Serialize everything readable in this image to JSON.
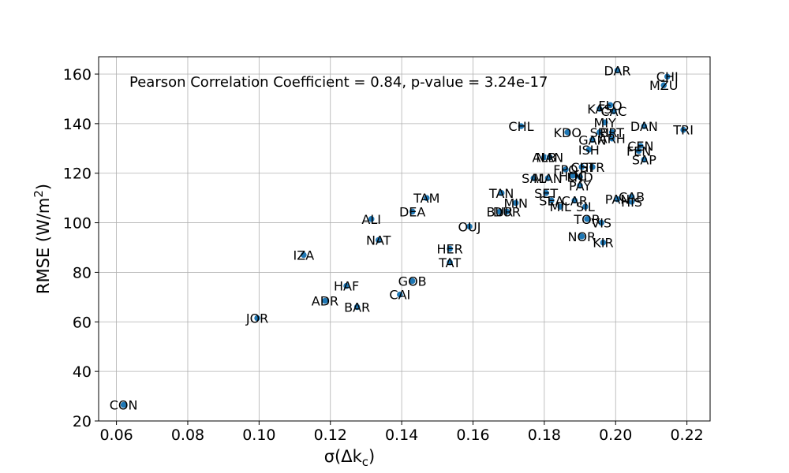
{
  "chart_data": {
    "type": "scatter",
    "title": "",
    "annotation": "Pearson Correlation Coefficient = 0.84, p-value = 3.24e-17",
    "xlabel": "σ(Δk",
    "xlabel_sub": "c",
    "xlabel_close": ")",
    "ylabel": "RMSE (W/m",
    "ylabel_sup": "2",
    "ylabel_close": ")",
    "xlim": [
      0.055,
      0.2265
    ],
    "ylim": [
      20,
      167
    ],
    "xticks": [
      0.06,
      0.08,
      0.1,
      0.12,
      0.14,
      0.16,
      0.18,
      0.2,
      0.22
    ],
    "xtick_labels": [
      "0.06",
      "0.08",
      "0.10",
      "0.12",
      "0.14",
      "0.16",
      "0.18",
      "0.20",
      "0.22"
    ],
    "yticks": [
      20,
      40,
      60,
      80,
      100,
      120,
      140,
      160
    ],
    "ytick_labels": [
      "20",
      "40",
      "60",
      "80",
      "100",
      "120",
      "140",
      "160"
    ],
    "grid": true,
    "marker_color": "#1f77b4",
    "points": [
      {
        "label": "CON",
        "x": 0.062,
        "y": 26.5
      },
      {
        "label": "JOR",
        "x": 0.0995,
        "y": 61.5
      },
      {
        "label": "IZA",
        "x": 0.1125,
        "y": 87
      },
      {
        "label": "ADR",
        "x": 0.1185,
        "y": 68.5
      },
      {
        "label": "HAF",
        "x": 0.1245,
        "y": 74.5
      },
      {
        "label": "BAR",
        "x": 0.1275,
        "y": 66
      },
      {
        "label": "ALI",
        "x": 0.1315,
        "y": 101.5
      },
      {
        "label": "NAT",
        "x": 0.1335,
        "y": 93
      },
      {
        "label": "CAI",
        "x": 0.1395,
        "y": 71
      },
      {
        "label": "DEA",
        "x": 0.143,
        "y": 104.5
      },
      {
        "label": "GOB",
        "x": 0.143,
        "y": 76.5
      },
      {
        "label": "TAM",
        "x": 0.147,
        "y": 110
      },
      {
        "label": "HER",
        "x": 0.1535,
        "y": 89.5
      },
      {
        "label": "TAT",
        "x": 0.1535,
        "y": 84
      },
      {
        "label": "OUJ",
        "x": 0.159,
        "y": 98.5
      },
      {
        "label": "BUR",
        "x": 0.1675,
        "y": 104.5
      },
      {
        "label": "DUR",
        "x": 0.1695,
        "y": 104.5
      },
      {
        "label": "TAN",
        "x": 0.168,
        "y": 112
      },
      {
        "label": "MIN",
        "x": 0.172,
        "y": 108
      },
      {
        "label": "CHL",
        "x": 0.1735,
        "y": 139
      },
      {
        "label": "SAL",
        "x": 0.177,
        "y": 118
      },
      {
        "label": "ALB",
        "x": 0.18,
        "y": 126.5
      },
      {
        "label": "NAN",
        "x": 0.1815,
        "y": 126.5
      },
      {
        "label": "MAN",
        "x": 0.181,
        "y": 118
      },
      {
        "label": "SET",
        "x": 0.1805,
        "y": 112
      },
      {
        "label": "SEA",
        "x": 0.182,
        "y": 109
      },
      {
        "label": "MIL",
        "x": 0.1845,
        "y": 106.5
      },
      {
        "label": "FPO",
        "x": 0.186,
        "y": 121.5
      },
      {
        "label": "HOC",
        "x": 0.188,
        "y": 119
      },
      {
        "label": "CAR",
        "x": 0.1885,
        "y": 109
      },
      {
        "label": "PAY",
        "x": 0.19,
        "y": 115
      },
      {
        "label": "LND",
        "x": 0.19,
        "y": 118.5
      },
      {
        "label": "KDO",
        "x": 0.1865,
        "y": 136.5
      },
      {
        "label": "CHI",
        "x": 0.1905,
        "y": 122.5
      },
      {
        "label": "STR",
        "x": 0.1935,
        "y": 122.5
      },
      {
        "label": "ISH",
        "x": 0.1925,
        "y": 129.5
      },
      {
        "label": "GAN",
        "x": 0.1935,
        "y": 133.5
      },
      {
        "label": "SIL",
        "x": 0.1915,
        "y": 106.5
      },
      {
        "label": "NOR",
        "x": 0.1905,
        "y": 94.5
      },
      {
        "label": "TOR",
        "x": 0.192,
        "y": 101.5
      },
      {
        "label": "VIS",
        "x": 0.196,
        "y": 100
      },
      {
        "label": "KIR",
        "x": 0.1965,
        "y": 92
      },
      {
        "label": "KAS",
        "x": 0.1955,
        "y": 146
      },
      {
        "label": "FLO",
        "x": 0.1985,
        "y": 147.5
      },
      {
        "label": "CAC",
        "x": 0.1995,
        "y": 145
      },
      {
        "label": "MIY",
        "x": 0.197,
        "y": 140.5
      },
      {
        "label": "SPI",
        "x": 0.1955,
        "y": 136.5
      },
      {
        "label": "BRT",
        "x": 0.199,
        "y": 136.5
      },
      {
        "label": "ARH",
        "x": 0.199,
        "y": 134
      },
      {
        "label": "DAR",
        "x": 0.2005,
        "y": 161.5
      },
      {
        "label": "PAN",
        "x": 0.2005,
        "y": 109.5
      },
      {
        "label": "HIS",
        "x": 0.2045,
        "y": 108.5
      },
      {
        "label": "CAB",
        "x": 0.2045,
        "y": 110.5
      },
      {
        "label": "DAN",
        "x": 0.208,
        "y": 139
      },
      {
        "label": "CEN",
        "x": 0.207,
        "y": 131
      },
      {
        "label": "FEN",
        "x": 0.2065,
        "y": 129
      },
      {
        "label": "SAP",
        "x": 0.208,
        "y": 125.5
      },
      {
        "label": "CHI",
        "x": 0.2145,
        "y": 159
      },
      {
        "label": "MZU",
        "x": 0.2135,
        "y": 155.5
      },
      {
        "label": "TRI",
        "x": 0.219,
        "y": 137.5
      }
    ]
  }
}
